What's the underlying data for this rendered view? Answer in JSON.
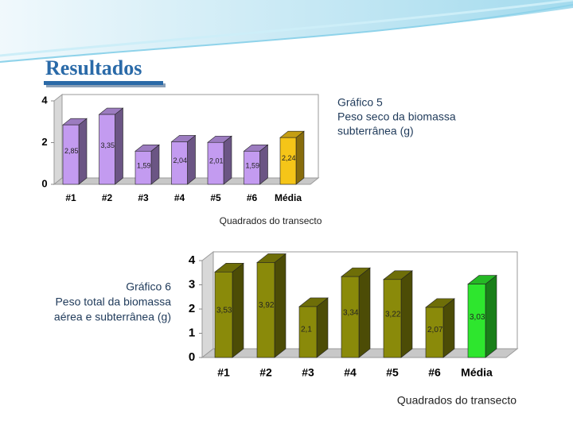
{
  "title": "Resultados",
  "chart_data": [
    {
      "type": "bar",
      "caption": [
        "Gráfico 5",
        "Peso seco da biomassa",
        "subterrânea (g)"
      ],
      "xlabel": "Quadrados do transecto",
      "categories": [
        "#1",
        "#2",
        "#3",
        "#4",
        "#5",
        "#6",
        "Média"
      ],
      "values": [
        2.85,
        3.35,
        1.59,
        2.04,
        2.01,
        1.59,
        2.24
      ],
      "value_labels": [
        "2,85",
        "3,35",
        "1,59",
        "2,04",
        "2,01",
        "1,59",
        "2,24"
      ],
      "colors": [
        "#c39bf0",
        "#c39bf0",
        "#c39bf0",
        "#c39bf0",
        "#c39bf0",
        "#c39bf0",
        "#f5c518"
      ],
      "ylim": [
        0,
        4
      ],
      "yticks": [
        0,
        2,
        4
      ]
    },
    {
      "type": "bar",
      "caption": [
        "Gráfico 6",
        "Peso total da biomassa",
        "aérea e subterrânea (g)"
      ],
      "xlabel": "Quadrados do transecto",
      "categories": [
        "#1",
        "#2",
        "#3",
        "#4",
        "#5",
        "#6",
        "Média"
      ],
      "values": [
        3.53,
        3.92,
        2.1,
        3.34,
        3.22,
        2.07,
        3.03
      ],
      "value_labels": [
        "3,53",
        "3,92",
        "2,1",
        "3,34",
        "3,22",
        "2,07",
        "3,03"
      ],
      "colors": [
        "#8a8a0a",
        "#8a8a0a",
        "#8a8a0a",
        "#8a8a0a",
        "#8a8a0a",
        "#8a8a0a",
        "#2ee62e"
      ],
      "ylim": [
        0,
        4
      ],
      "yticks": [
        0,
        1,
        2,
        3,
        4
      ]
    }
  ]
}
